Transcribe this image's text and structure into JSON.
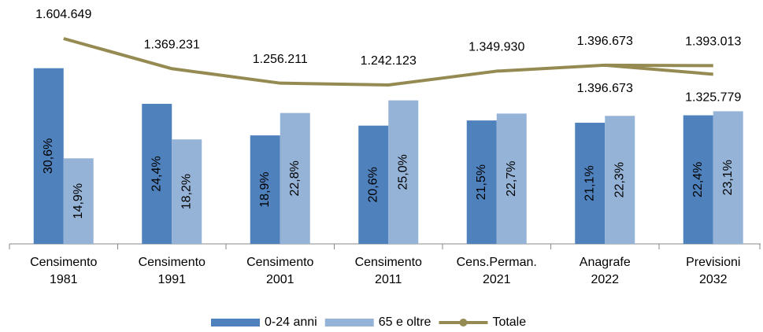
{
  "chart_data": {
    "type": "bar",
    "categories": [
      [
        "Censimento",
        "1981"
      ],
      [
        "Censimento",
        "1991"
      ],
      [
        "Censimento",
        "2001"
      ],
      [
        "Censimento",
        "2011"
      ],
      [
        "Cens.Perman.",
        "2021"
      ],
      [
        "Anagrafe",
        "2022"
      ],
      [
        "Previsioni",
        "2032"
      ]
    ],
    "ylim": [
      0,
      37
    ],
    "y2lim": [
      0,
      1660000
    ],
    "series": [
      {
        "name": "0-24 anni",
        "type": "bar",
        "color": "#4f81bd",
        "values": [
          30.6,
          24.4,
          18.9,
          20.6,
          21.5,
          21.1,
          22.4
        ],
        "value_labels": [
          "30,6%",
          "24,4%",
          "18,9%",
          "20,6%",
          "21,5%",
          "21,1%",
          "22,4%"
        ]
      },
      {
        "name": "65 e oltre",
        "type": "bar",
        "color": "#95b3d7",
        "values": [
          14.9,
          18.2,
          22.8,
          25.0,
          22.7,
          22.3,
          23.1
        ],
        "value_labels": [
          "14,9%",
          "18,2%",
          "22,8%",
          "25,0%",
          "22,7%",
          "22,3%",
          "23,1%"
        ]
      },
      {
        "name": "Totale",
        "type": "line",
        "axis": "y2",
        "color": "#958b52",
        "label_position": "above",
        "values": [
          1604649,
          1369231,
          1256211,
          1242123,
          1349930,
          1396673,
          1393013
        ],
        "value_labels": [
          "1.604.649",
          "1.369.231",
          "1.256.211",
          "1.242.123",
          "1.349.930",
          "1.396.673",
          "1.393.013"
        ]
      },
      {
        "type": "line",
        "axis": "y2",
        "color": "#958b52",
        "label_position": "below",
        "values": [
          null,
          null,
          null,
          null,
          null,
          1396673,
          1325779
        ],
        "value_labels": [
          null,
          null,
          null,
          null,
          null,
          "1.396.673",
          "1.325.779"
        ]
      }
    ]
  }
}
